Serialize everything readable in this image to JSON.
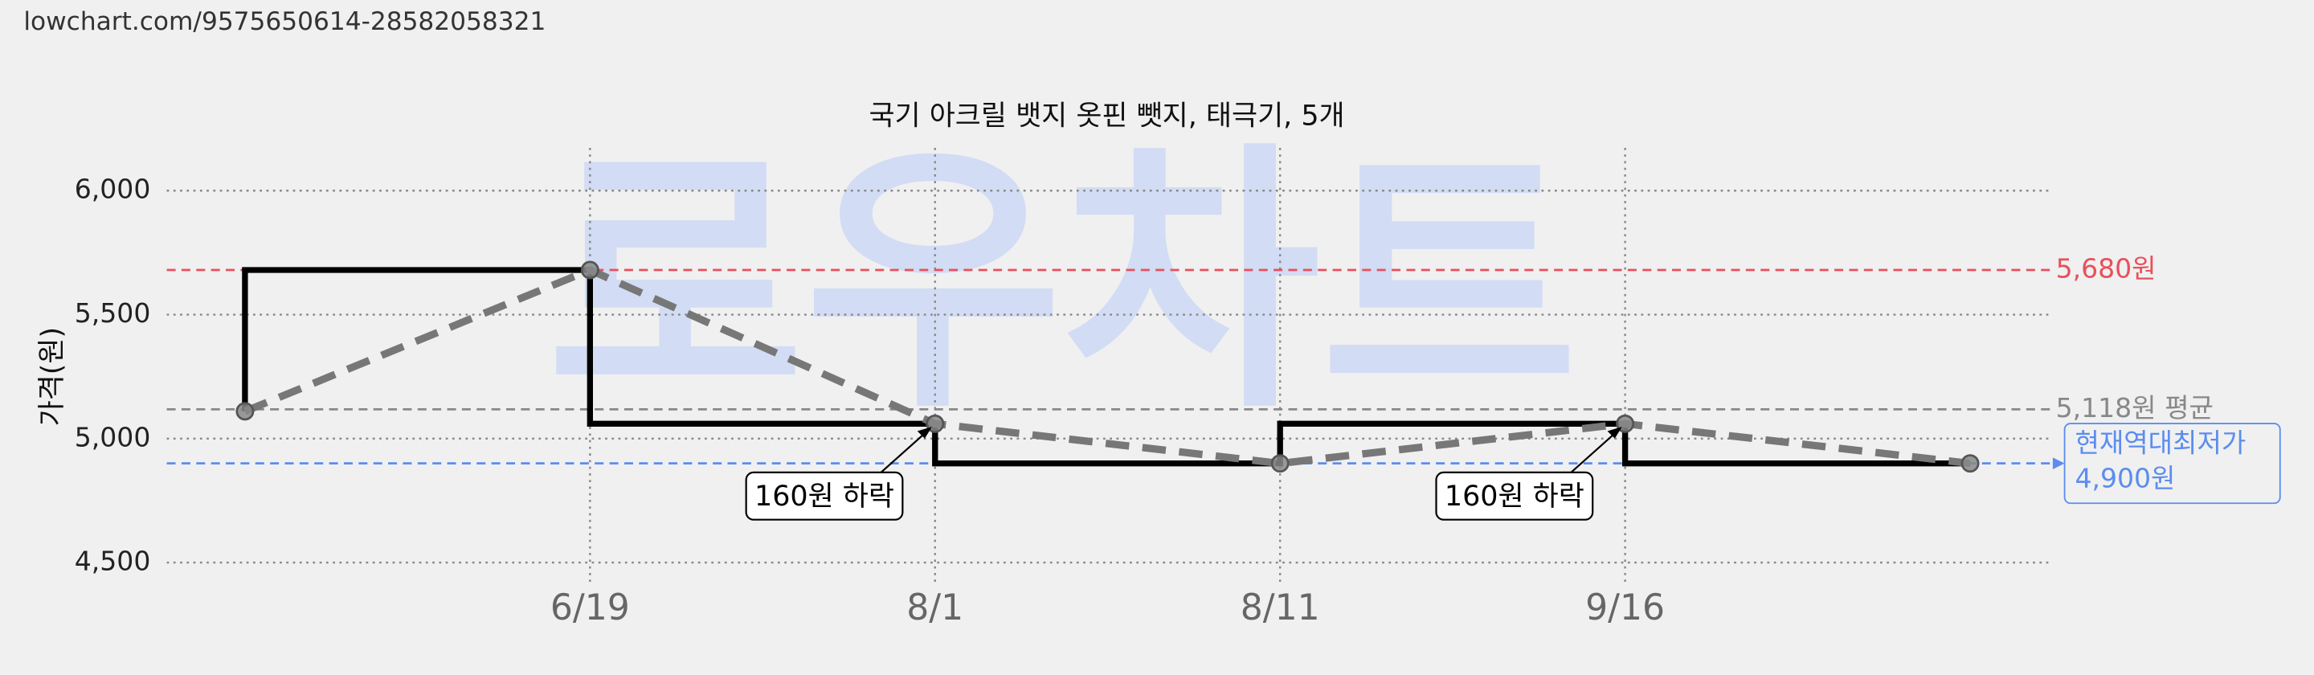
{
  "header": {
    "url": "lowchart.com/9575650614-28582058321"
  },
  "chart_data": {
    "type": "line",
    "title": "국기 아크릴 뱃지 옷핀 뺏지, 태극기, 5개",
    "y_label": "가격(원)",
    "watermark": "로우차트",
    "categories": [
      null,
      "6/19",
      "8/1",
      "8/11",
      "9/16",
      null
    ],
    "values": [
      5110,
      5680,
      5060,
      4900,
      5060,
      4900
    ],
    "step": true,
    "color": "#000000",
    "dashed_color": "#777777",
    "ylim": [
      4500,
      6000
    ],
    "yticks": [
      {
        "value": 4500,
        "label": "4,500"
      },
      {
        "value": 5000,
        "label": "5,000"
      },
      {
        "value": 5500,
        "label": "5,500"
      },
      {
        "value": 6000,
        "label": "6,000"
      }
    ],
    "grid": true,
    "ref_lines": [
      {
        "value": 5680,
        "label": "5,680원",
        "color": "#e8505b"
      },
      {
        "value": 5118,
        "label": "5,118원 평균",
        "color": "#888888"
      },
      {
        "value": 4900,
        "label": "현재역대최저가",
        "label2": "4,900원",
        "color": "#5b8def"
      }
    ],
    "annotations": [
      {
        "text": "160원 하락",
        "x": "8/1"
      },
      {
        "text": "160원 하락",
        "x": "9/16"
      }
    ]
  }
}
